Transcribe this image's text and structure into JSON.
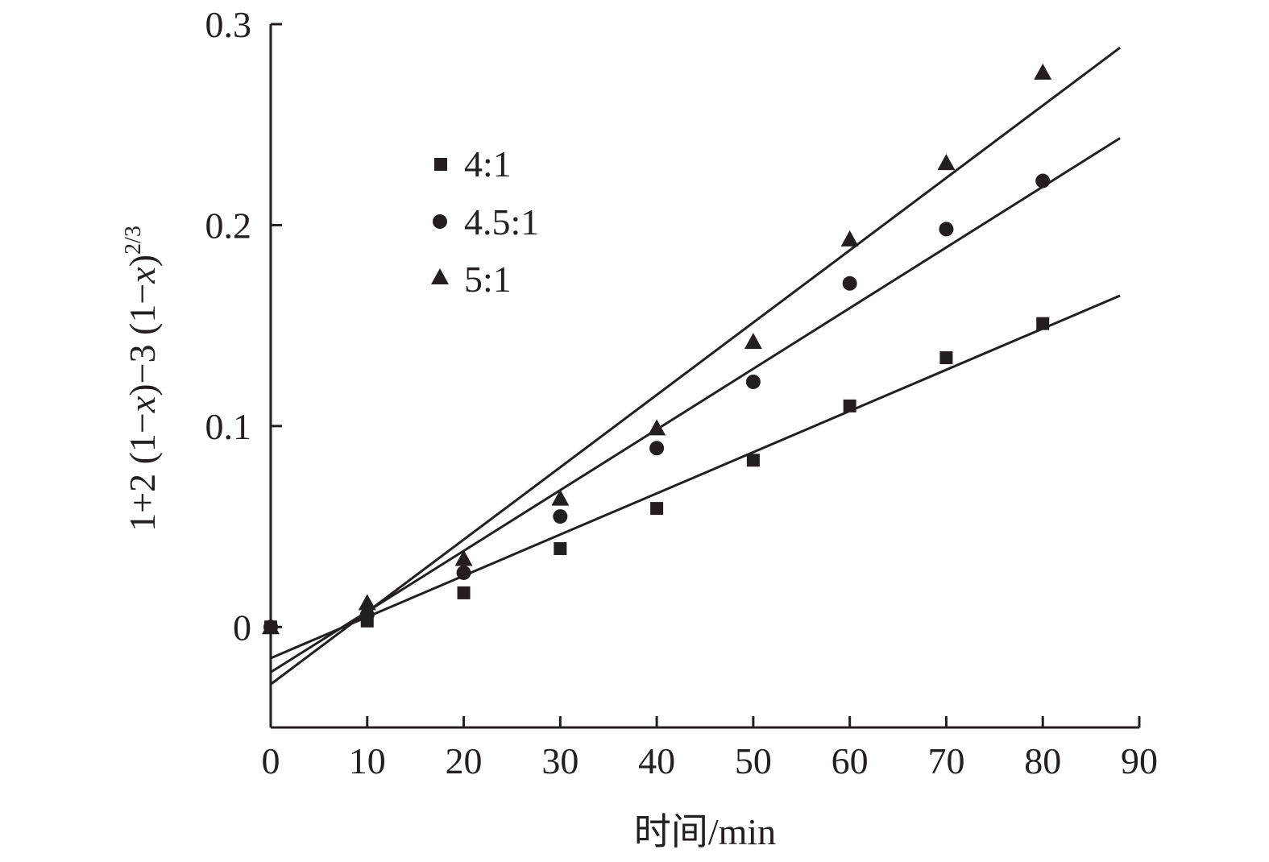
{
  "chart_data": {
    "type": "scatter",
    "title": "",
    "xlabel": "时间/min",
    "ylabel": {
      "prefix": "1+2 (1−",
      "var1": "x",
      "middle": ")−3 (1−",
      "var2": "x",
      "suffix": ")",
      "exponent": "2/3"
    },
    "xlim": [
      0,
      90
    ],
    "ylim": [
      -0.05,
      0.3
    ],
    "x_ticks": [
      0,
      10,
      20,
      30,
      40,
      50,
      60,
      70,
      80,
      90
    ],
    "x_tick_labels": [
      "0",
      "10",
      "20",
      "30",
      "40",
      "50",
      "60",
      "70",
      "80",
      "90"
    ],
    "y_ticks": [
      0,
      0.1,
      0.2,
      0.3
    ],
    "y_tick_labels": [
      "0",
      "0.1",
      "0.2",
      "0.3"
    ],
    "grid": false,
    "legend_position": "top-left",
    "series": [
      {
        "name": "4:1",
        "marker": "square",
        "x": [
          0,
          10,
          20,
          30,
          40,
          50,
          60,
          70,
          80
        ],
        "y": [
          0,
          0.003,
          0.017,
          0.039,
          0.059,
          0.083,
          0.11,
          0.134,
          0.151
        ],
        "fit": {
          "slope": 0.00205,
          "intercept": -0.0155,
          "x_end": 88
        }
      },
      {
        "name": "4.5:1",
        "marker": "circle",
        "x": [
          0,
          10,
          20,
          30,
          40,
          50,
          60,
          70,
          80
        ],
        "y": [
          0,
          0.006,
          0.027,
          0.055,
          0.089,
          0.122,
          0.171,
          0.198,
          0.222
        ],
        "fit": {
          "slope": 0.00302,
          "intercept": -0.0225,
          "x_end": 88
        }
      },
      {
        "name": "5:1",
        "marker": "triangle",
        "x": [
          0,
          10,
          20,
          30,
          40,
          50,
          60,
          70,
          80
        ],
        "y": [
          0,
          0.012,
          0.034,
          0.064,
          0.099,
          0.142,
          0.193,
          0.231,
          0.276
        ],
        "fit": {
          "slope": 0.0036,
          "intercept": -0.0285,
          "x_end": 88
        }
      }
    ]
  },
  "colors": {
    "ink": "#231f20",
    "background": "#ffffff"
  }
}
